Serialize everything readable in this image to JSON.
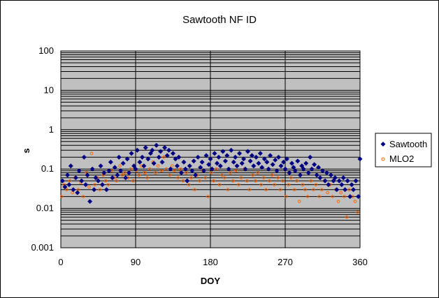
{
  "chart_data": {
    "type": "scatter",
    "title": "Sawtooth NF ID",
    "xlabel": "DOY",
    "ylabel": "s",
    "xlim": [
      0,
      360
    ],
    "ylim": [
      0.001,
      100
    ],
    "y_scale": "log",
    "x_ticks": [
      "0",
      "90",
      "180",
      "270",
      "360"
    ],
    "y_ticks": [
      "0.001",
      "0.01",
      "0.1",
      "1",
      "10",
      "100"
    ],
    "grid": true,
    "legend_position": "right",
    "background": "#C0C0C0",
    "series": [
      {
        "name": "Sawtooth",
        "marker": "diamond",
        "color": "#000080",
        "x": [
          2,
          5,
          8,
          10,
          12,
          15,
          18,
          20,
          22,
          25,
          28,
          30,
          32,
          35,
          38,
          40,
          42,
          45,
          48,
          50,
          52,
          55,
          58,
          60,
          62,
          65,
          68,
          70,
          72,
          75,
          78,
          80,
          82,
          85,
          88,
          90,
          92,
          95,
          98,
          100,
          102,
          105,
          108,
          110,
          112,
          115,
          118,
          120,
          122,
          125,
          128,
          130,
          132,
          135,
          138,
          140,
          142,
          145,
          148,
          150,
          152,
          155,
          158,
          160,
          162,
          165,
          168,
          170,
          172,
          175,
          178,
          180,
          182,
          185,
          188,
          190,
          192,
          195,
          198,
          200,
          202,
          205,
          208,
          210,
          212,
          215,
          218,
          220,
          222,
          225,
          228,
          230,
          232,
          235,
          238,
          240,
          242,
          245,
          248,
          250,
          252,
          255,
          258,
          260,
          262,
          265,
          268,
          270,
          272,
          275,
          278,
          280,
          282,
          285,
          288,
          290,
          292,
          295,
          298,
          300,
          302,
          305,
          308,
          310,
          312,
          315,
          318,
          320,
          322,
          325,
          328,
          330,
          332,
          335,
          338,
          340,
          342,
          345,
          348,
          350,
          352,
          355,
          358,
          360
        ],
        "y": [
          0.05,
          0.035,
          0.07,
          0.04,
          0.12,
          0.03,
          0.06,
          0.025,
          0.09,
          0.05,
          0.2,
          0.04,
          0.07,
          0.015,
          0.1,
          0.03,
          0.06,
          0.05,
          0.12,
          0.04,
          0.08,
          0.03,
          0.09,
          0.15,
          0.06,
          0.11,
          0.07,
          0.2,
          0.09,
          0.14,
          0.06,
          0.18,
          0.08,
          0.25,
          0.12,
          0.1,
          0.3,
          0.15,
          0.2,
          0.12,
          0.35,
          0.18,
          0.25,
          0.3,
          0.14,
          0.4,
          0.2,
          0.28,
          0.15,
          0.35,
          0.22,
          0.3,
          0.1,
          0.25,
          0.18,
          0.12,
          0.2,
          0.08,
          0.15,
          0.1,
          0.05,
          0.12,
          0.09,
          0.16,
          0.07,
          0.2,
          0.11,
          0.15,
          0.09,
          0.22,
          0.13,
          0.18,
          0.1,
          0.25,
          0.14,
          0.2,
          0.12,
          0.28,
          0.16,
          0.22,
          0.1,
          0.3,
          0.15,
          0.2,
          0.12,
          0.25,
          0.14,
          0.18,
          0.1,
          0.28,
          0.16,
          0.22,
          0.12,
          0.2,
          0.14,
          0.25,
          0.11,
          0.18,
          0.15,
          0.1,
          0.22,
          0.13,
          0.17,
          0.09,
          0.2,
          0.12,
          0.15,
          0.1,
          0.18,
          0.08,
          0.14,
          0.11,
          0.09,
          0.16,
          0.07,
          0.12,
          0.1,
          0.14,
          0.08,
          0.2,
          0.1,
          0.13,
          0.07,
          0.11,
          0.06,
          0.09,
          0.05,
          0.08,
          0.04,
          0.07,
          0.05,
          0.06,
          0.03,
          0.05,
          0.04,
          0.06,
          0.03,
          0.05,
          0.02,
          0.04,
          0.03,
          0.05,
          0.02,
          0.18
        ]
      },
      {
        "name": "MLO2",
        "marker": "circle",
        "color": "#FF6600",
        "x": [
          1,
          4,
          7,
          11,
          14,
          17,
          21,
          24,
          27,
          31,
          34,
          37,
          41,
          44,
          47,
          51,
          54,
          57,
          61,
          64,
          67,
          71,
          74,
          77,
          81,
          84,
          87,
          91,
          94,
          97,
          101,
          104,
          107,
          111,
          114,
          117,
          121,
          124,
          127,
          131,
          134,
          137,
          141,
          144,
          147,
          151,
          154,
          157,
          161,
          164,
          167,
          171,
          174,
          177,
          181,
          184,
          187,
          191,
          194,
          197,
          201,
          204,
          207,
          211,
          214,
          217,
          221,
          224,
          227,
          231,
          234,
          237,
          241,
          244,
          247,
          251,
          254,
          257,
          261,
          264,
          267,
          271,
          274,
          277,
          281,
          284,
          287,
          291,
          294,
          297,
          301,
          304,
          307,
          311,
          314,
          317,
          321,
          324,
          327,
          331,
          334,
          337,
          341,
          344,
          347,
          351,
          354,
          357
        ],
        "y": [
          0.02,
          0.04,
          0.03,
          0.05,
          0.025,
          0.06,
          0.03,
          0.045,
          0.02,
          0.08,
          0.035,
          0.25,
          0.04,
          0.06,
          0.03,
          0.07,
          0.05,
          0.04,
          0.09,
          0.06,
          0.05,
          0.12,
          0.07,
          0.08,
          0.06,
          0.1,
          0.05,
          0.09,
          0.07,
          0.12,
          0.08,
          0.06,
          0.1,
          0.15,
          0.08,
          0.12,
          0.09,
          0.2,
          0.1,
          0.07,
          0.12,
          0.09,
          0.06,
          0.1,
          0.05,
          0.08,
          0.04,
          0.06,
          0.03,
          0.07,
          0.05,
          0.09,
          0.06,
          0.02,
          0.08,
          0.05,
          0.1,
          0.04,
          0.07,
          0.06,
          0.03,
          0.08,
          0.05,
          0.09,
          0.04,
          0.06,
          0.1,
          0.05,
          0.03,
          0.07,
          0.05,
          0.08,
          0.04,
          0.06,
          0.03,
          0.05,
          0.07,
          0.04,
          0.06,
          0.03,
          0.05,
          0.02,
          0.04,
          0.06,
          0.03,
          0.05,
          0.015,
          0.04,
          0.03,
          0.02,
          0.05,
          0.03,
          0.04,
          0.02,
          0.03,
          0.05,
          0.025,
          0.04,
          0.02,
          0.03,
          0.015,
          0.025,
          0.02,
          0.006,
          0.03,
          0.02,
          0.015,
          0.008
        ]
      }
    ]
  }
}
